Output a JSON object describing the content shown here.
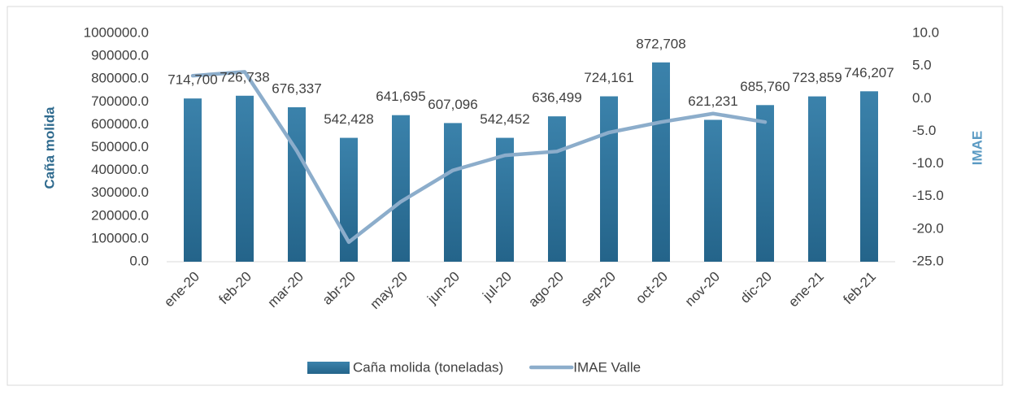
{
  "chart_data": {
    "type": "bar-line",
    "categories": [
      "ene-20",
      "feb-20",
      "mar-20",
      "abr-20",
      "may-20",
      "jun-20",
      "jul-20",
      "ago-20",
      "sep-20",
      "oct-20",
      "nov-20",
      "dic-20",
      "ene-21",
      "feb-21"
    ],
    "y_label": "Caña molida",
    "y2_label": "IMAE",
    "series": [
      {
        "name": "Caña molida (toneladas)",
        "type": "bar",
        "color": "#2e6f96",
        "values": [
          714700,
          726738,
          676337,
          542428,
          641695,
          607096,
          542452,
          636499,
          724161,
          872708,
          621231,
          685760,
          723859,
          746207
        ],
        "value_labels": [
          "714,700",
          "726,738",
          "676,337",
          "542,428",
          "641,695",
          "607,096",
          "542,452",
          "636,499",
          "724,161",
          "872,708",
          "621,231",
          "685,760",
          "723,859",
          "746,207"
        ]
      },
      {
        "name": "IMAE Valle",
        "type": "line",
        "axis": "y2",
        "color": "#8cadcb",
        "values": [
          3.5,
          4.1,
          -8,
          -22,
          -15.8,
          -11,
          -8.7,
          -8.1,
          -5.2,
          -3.6,
          -2.3,
          -3.6,
          null,
          null
        ]
      }
    ],
    "ylim": [
      0,
      1000000
    ],
    "yticks": [
      {
        "value": 0,
        "label": "0.0"
      },
      {
        "value": 100000,
        "label": "100000.0"
      },
      {
        "value": 200000,
        "label": "200000.0"
      },
      {
        "value": 300000,
        "label": "300000.0"
      },
      {
        "value": 400000,
        "label": "400000.0"
      },
      {
        "value": 500000,
        "label": "500000.0"
      },
      {
        "value": 600000,
        "label": "600000.0"
      },
      {
        "value": 700000,
        "label": "700000.0"
      },
      {
        "value": 800000,
        "label": "800000.0"
      },
      {
        "value": 900000,
        "label": "900000.0"
      },
      {
        "value": 1000000,
        "label": "1000000.0"
      }
    ],
    "y2lim": [
      -25,
      10
    ],
    "y2ticks": [
      {
        "value": -25,
        "label": "-25.0"
      },
      {
        "value": -20,
        "label": "-20.0"
      },
      {
        "value": -15,
        "label": "-15.0"
      },
      {
        "value": -10,
        "label": "-10.0"
      },
      {
        "value": -5,
        "label": "-5.0"
      },
      {
        "value": 0,
        "label": "0.0"
      },
      {
        "value": 5,
        "label": "5.0"
      },
      {
        "value": 10,
        "label": "10.0"
      }
    ]
  }
}
